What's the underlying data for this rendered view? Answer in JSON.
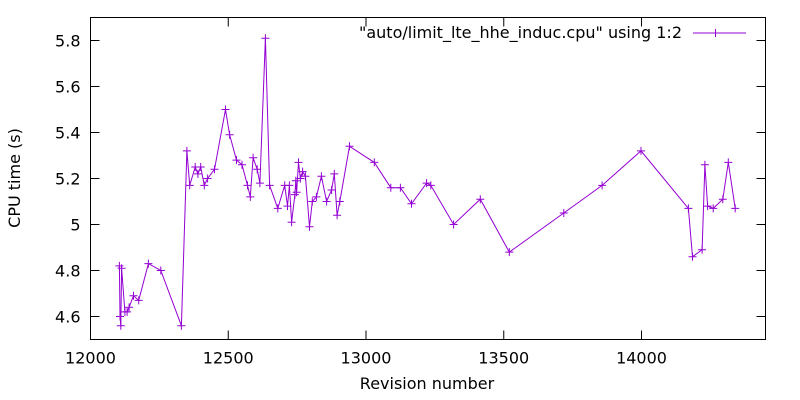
{
  "chart_data": {
    "type": "line",
    "title": "",
    "xlabel": "Revision number",
    "ylabel": "CPU time (s)",
    "xlim": [
      12000,
      14450
    ],
    "ylim": [
      4.5,
      5.9
    ],
    "x_ticks": [
      12000,
      12500,
      13000,
      13500,
      14000
    ],
    "x_tick_labels": [
      "12000",
      "12500",
      "13000",
      "13500",
      "14000"
    ],
    "y_ticks": [
      4.6,
      4.8,
      5.0,
      5.2,
      5.4,
      5.6,
      5.8
    ],
    "y_tick_labels": [
      "4.6",
      "4.8",
      "5",
      "5.2",
      "5.4",
      "5.6",
      "5.8"
    ],
    "grid": false,
    "legend_position": "top-right",
    "series": [
      {
        "name": "\"auto/limit_lte_hhe_induc.cpu\" using 1:2",
        "color": "#9400d3",
        "marker": "plus",
        "x": [
          12105,
          12107,
          12110,
          12113,
          12125,
          12133,
          12140,
          12156,
          12175,
          12210,
          12255,
          12330,
          12350,
          12360,
          12380,
          12390,
          12400,
          12413,
          12425,
          12450,
          12490,
          12505,
          12530,
          12550,
          12570,
          12580,
          12590,
          12605,
          12615,
          12635,
          12650,
          12680,
          12705,
          12715,
          12722,
          12730,
          12742,
          12745,
          12748,
          12755,
          12762,
          12770,
          12780,
          12795,
          12805,
          12820,
          12838,
          12857,
          12875,
          12885,
          12895,
          12905,
          12940,
          13030,
          13090,
          13125,
          13165,
          13220,
          13235,
          13318,
          13415,
          13520,
          13718,
          13857,
          13998,
          14170,
          14185,
          14220,
          14230,
          14240,
          14260,
          14295,
          14315,
          14340
        ],
        "y": [
          4.82,
          4.6,
          4.56,
          4.81,
          4.62,
          4.62,
          4.64,
          4.69,
          4.67,
          4.83,
          4.8,
          4.56,
          5.32,
          5.17,
          5.25,
          5.22,
          5.25,
          5.17,
          5.2,
          5.24,
          5.5,
          5.39,
          5.28,
          5.26,
          5.17,
          5.12,
          5.29,
          5.24,
          5.18,
          5.81,
          5.17,
          5.07,
          5.17,
          5.08,
          5.17,
          5.01,
          5.13,
          5.19,
          5.14,
          5.27,
          5.2,
          5.23,
          5.21,
          4.99,
          5.1,
          5.12,
          5.21,
          5.1,
          5.15,
          5.22,
          5.04,
          5.1,
          5.34,
          5.27,
          5.16,
          5.16,
          5.09,
          5.18,
          5.17,
          5.0,
          5.11,
          4.88,
          5.05,
          5.17,
          5.32,
          5.07,
          4.86,
          4.89,
          5.26,
          5.08,
          5.07,
          5.11,
          5.27,
          5.07
        ]
      }
    ]
  }
}
